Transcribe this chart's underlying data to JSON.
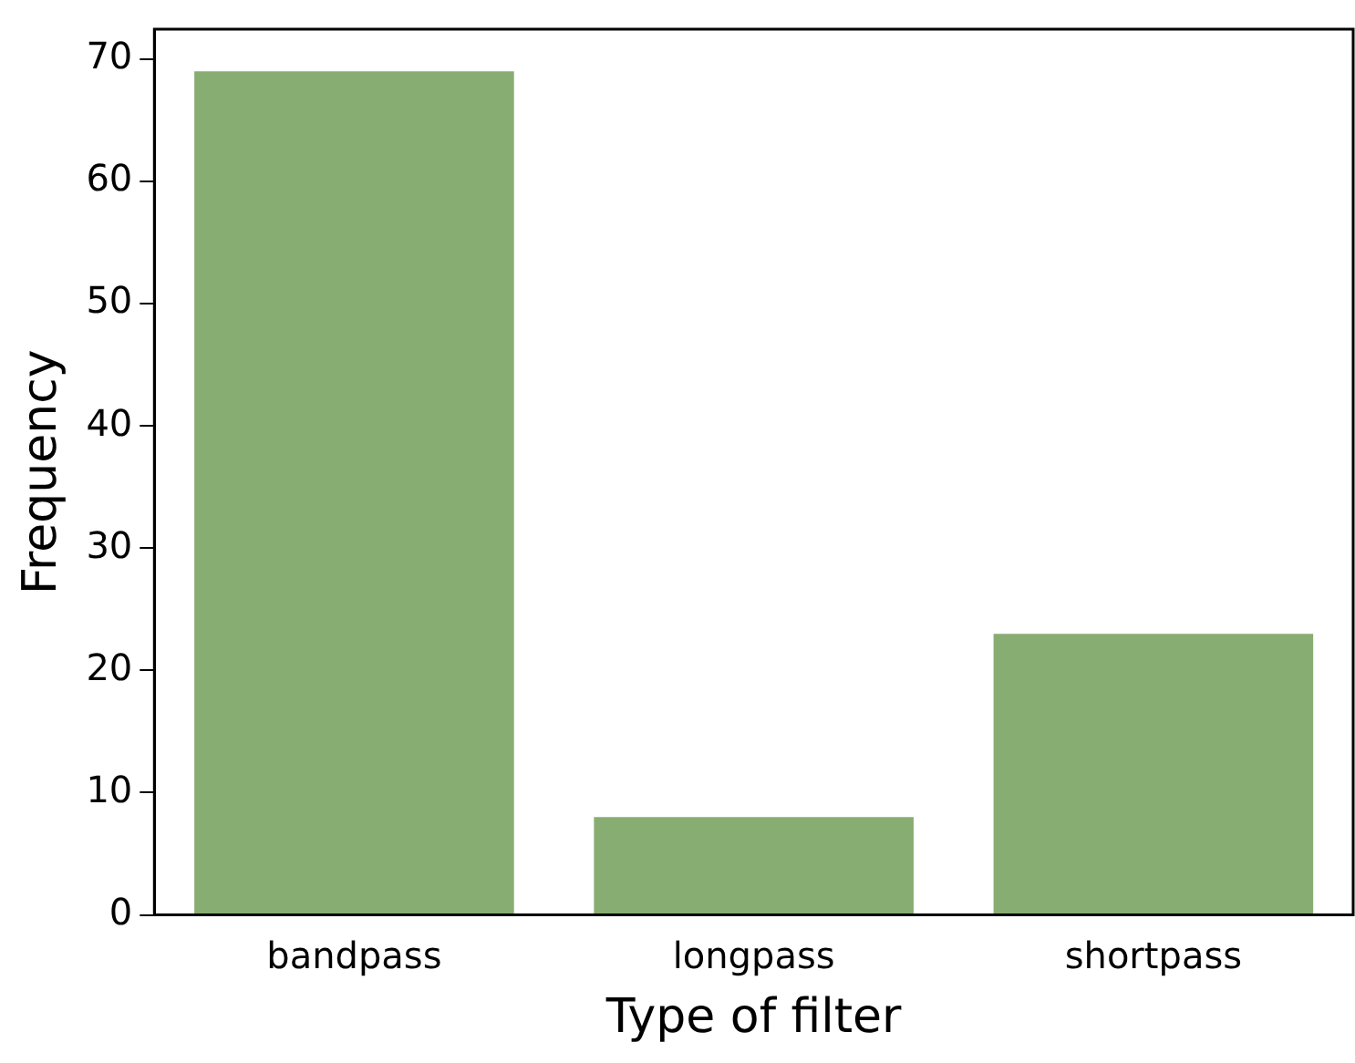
{
  "chart_data": {
    "type": "bar",
    "xlabel": "Type of filter",
    "ylabel": "Frequency",
    "categories": [
      "bandpass",
      "longpass",
      "shortpass"
    ],
    "values": [
      69,
      8,
      23
    ],
    "color": "#88ad73",
    "ylim": [
      0,
      72.45
    ],
    "yticks": [
      0,
      10,
      20,
      30,
      40,
      50,
      60,
      70
    ],
    "grid": false,
    "legend": false
  }
}
